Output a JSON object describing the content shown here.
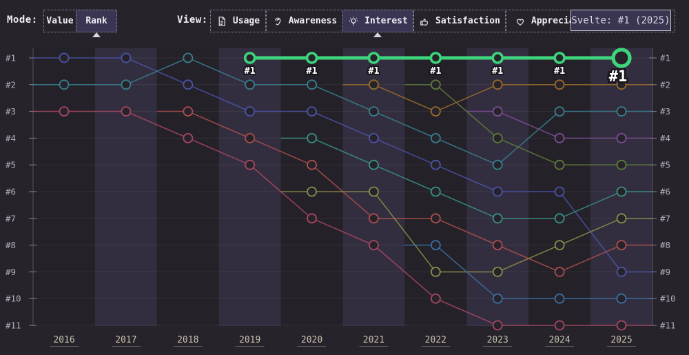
{
  "toolbar": {
    "mode_label": "Mode:",
    "mode_options": [
      {
        "label": "Value",
        "selected": false
      },
      {
        "label": "Rank",
        "selected": true
      }
    ],
    "view_label": "View:",
    "view_options": [
      {
        "label": "Usage",
        "icon": "document-icon",
        "selected": false
      },
      {
        "label": "Awareness",
        "icon": "ear-icon",
        "selected": false
      },
      {
        "label": "Interest",
        "icon": "lightbulb-icon",
        "selected": true
      },
      {
        "label": "Satisfaction",
        "icon": "thumbs-up-icon",
        "selected": false
      },
      {
        "label": "Appreciation",
        "icon": "heart-icon",
        "selected": false
      }
    ]
  },
  "tooltip": {
    "text": "Svelte: #1 (2025)"
  },
  "chart_data": {
    "type": "line",
    "subtype": "bump-rank-chart",
    "years": [
      2016,
      2017,
      2018,
      2019,
      2020,
      2021,
      2022,
      2023,
      2024,
      2025
    ],
    "rank_ticks": [
      "#1",
      "#2",
      "#3",
      "#4",
      "#5",
      "#6",
      "#7",
      "#8",
      "#9",
      "#10",
      "#11"
    ],
    "grid": true,
    "legend": "none",
    "axis_rank_range": [
      1,
      11
    ],
    "highlighted_series": "Svelte",
    "highlight_color": "#3ed47c",
    "highlight_point_label": "#1",
    "colors": {
      "band_dark": "#242128",
      "band_light": "#332e3f",
      "gridline": "rgba(255,255,255,0.07)",
      "axis_line": "#575161",
      "tick": "#8a8494",
      "rank_label": "#b2abba",
      "year_label": "#c9c0ae",
      "marker_fill": "#27232b"
    },
    "series": [
      {
        "name": "series-indigo",
        "color": "#4a54a8",
        "highlight": false,
        "points": [
          [
            2016,
            1
          ],
          [
            2017,
            1
          ],
          [
            2018,
            2
          ],
          [
            2019,
            3
          ],
          [
            2020,
            3
          ],
          [
            2021,
            4
          ],
          [
            2022,
            5
          ],
          [
            2023,
            6
          ],
          [
            2024,
            6
          ],
          [
            2025,
            9
          ]
        ]
      },
      {
        "name": "series-teal",
        "color": "#38808f",
        "highlight": false,
        "points": [
          [
            2016,
            2
          ],
          [
            2017,
            2
          ],
          [
            2018,
            1
          ],
          [
            2019,
            2
          ],
          [
            2020,
            2
          ],
          [
            2021,
            3
          ],
          [
            2022,
            4
          ],
          [
            2023,
            5
          ],
          [
            2024,
            3
          ],
          [
            2025,
            3
          ]
        ]
      },
      {
        "name": "series-crimson",
        "color": "#a74862",
        "highlight": false,
        "points": [
          [
            2016,
            3
          ],
          [
            2017,
            3
          ],
          [
            2018,
            4
          ],
          [
            2019,
            5
          ],
          [
            2020,
            7
          ],
          [
            2021,
            8
          ],
          [
            2022,
            10
          ],
          [
            2023,
            11
          ],
          [
            2024,
            11
          ],
          [
            2025,
            11
          ]
        ]
      },
      {
        "name": "series-red",
        "color": "#ad4f4e",
        "highlight": false,
        "points": [
          [
            2018,
            3
          ],
          [
            2019,
            4
          ],
          [
            2020,
            5
          ],
          [
            2021,
            7
          ],
          [
            2022,
            7
          ],
          [
            2023,
            8
          ],
          [
            2024,
            9
          ],
          [
            2025,
            8
          ]
        ]
      },
      {
        "name": "series-seagreen",
        "color": "#3a9287",
        "highlight": false,
        "points": [
          [
            2020,
            4
          ],
          [
            2021,
            5
          ],
          [
            2022,
            6
          ],
          [
            2023,
            7
          ],
          [
            2024,
            7
          ],
          [
            2025,
            6
          ]
        ]
      },
      {
        "name": "series-olive",
        "color": "#8f8c4b",
        "highlight": false,
        "points": [
          [
            2020,
            6
          ],
          [
            2021,
            6
          ],
          [
            2022,
            9
          ],
          [
            2023,
            9
          ],
          [
            2024,
            8
          ],
          [
            2025,
            7
          ]
        ]
      },
      {
        "name": "series-bronze",
        "color": "#9b6c2c",
        "highlight": false,
        "points": [
          [
            2021,
            2
          ],
          [
            2022,
            3
          ],
          [
            2023,
            2
          ],
          [
            2024,
            2
          ],
          [
            2025,
            2
          ]
        ]
      },
      {
        "name": "series-moss",
        "color": "#5e7c3d",
        "highlight": false,
        "points": [
          [
            2022,
            2
          ],
          [
            2023,
            4
          ],
          [
            2024,
            5
          ],
          [
            2025,
            5
          ]
        ]
      },
      {
        "name": "series-steel",
        "color": "#3a70a6",
        "highlight": false,
        "points": [
          [
            2022,
            8
          ],
          [
            2023,
            10
          ],
          [
            2024,
            10
          ],
          [
            2025,
            10
          ]
        ]
      },
      {
        "name": "series-purple",
        "color": "#7b4f95",
        "highlight": false,
        "points": [
          [
            2023,
            3
          ],
          [
            2024,
            4
          ],
          [
            2025,
            4
          ]
        ]
      },
      {
        "name": "Svelte",
        "color": "#3ed47c",
        "highlight": true,
        "points": [
          [
            2019,
            1
          ],
          [
            2020,
            1
          ],
          [
            2021,
            1
          ],
          [
            2022,
            1
          ],
          [
            2023,
            1
          ],
          [
            2024,
            1
          ],
          [
            2025,
            1
          ]
        ]
      }
    ]
  }
}
